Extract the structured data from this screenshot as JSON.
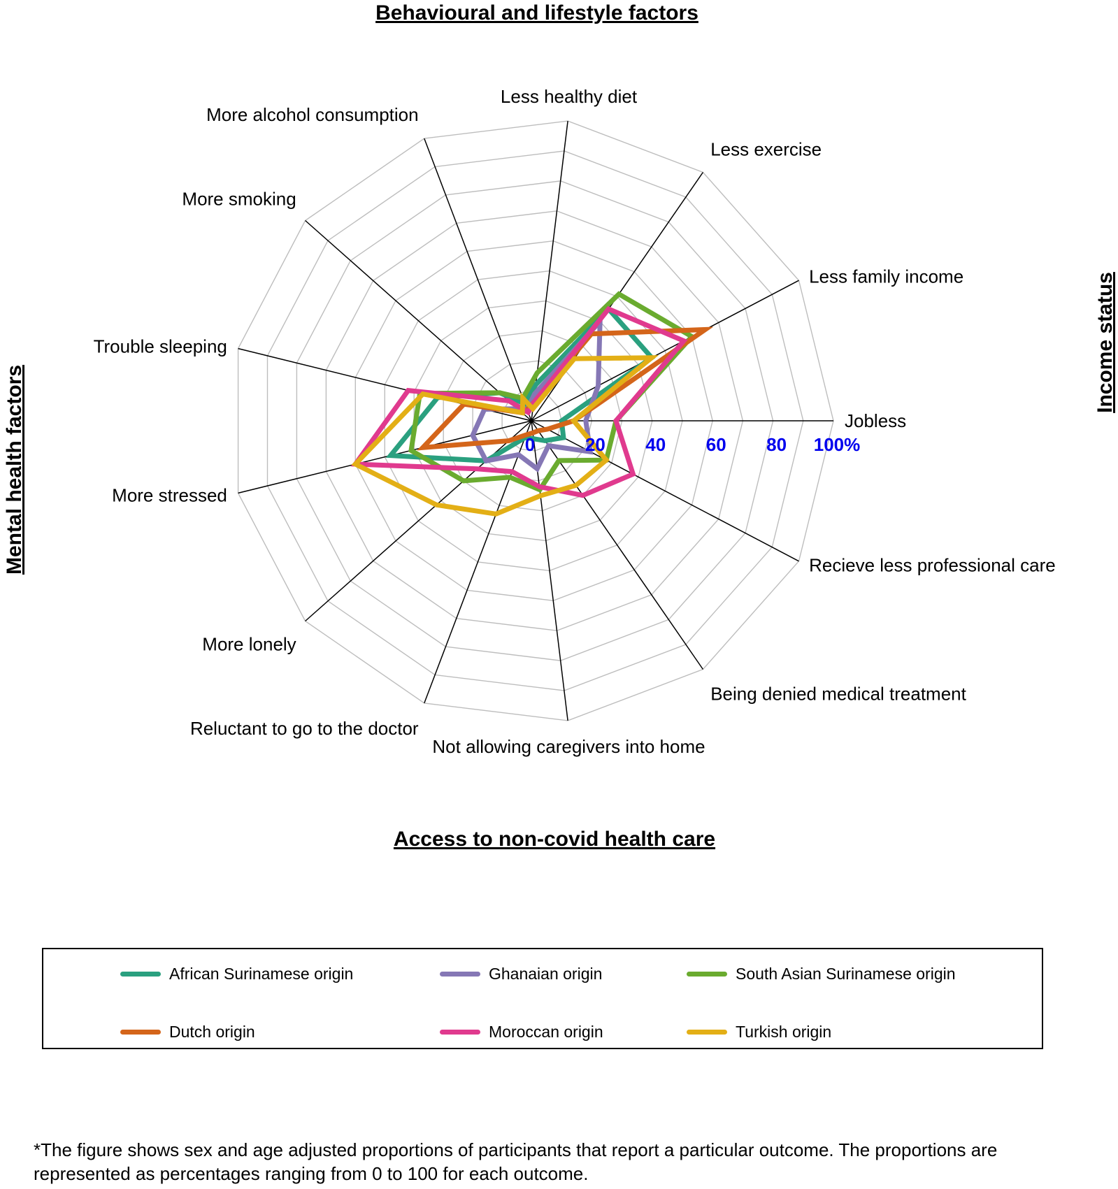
{
  "chart_data": {
    "type": "radar",
    "scale_max": 100,
    "ticks": [
      "0",
      "20",
      "40",
      "60",
      "80",
      "100%"
    ],
    "grid": true,
    "legend_placement": "bottom",
    "axes": [
      "Jobless",
      "Recieve less professional care",
      "Being denied medical treatment",
      "Not allowing caregivers into home",
      "Reluctant to go to the doctor",
      "More lonely",
      "More stressed",
      "Trouble sleeping",
      "More smoking",
      "More alcohol consumption",
      "Less healthy diet",
      "Less exercise",
      "Less family income"
    ],
    "series": [
      {
        "name": "African Surinamese origin",
        "color": "#2AA07F",
        "values": [
          10,
          12,
          8,
          6,
          6,
          20,
          48,
          32,
          14,
          6,
          12,
          45,
          45
        ]
      },
      {
        "name": "Ghanaian origin",
        "color": "#8577B5",
        "values": [
          18,
          22,
          10,
          16,
          12,
          20,
          20,
          16,
          6,
          4,
          9,
          40,
          25
        ]
      },
      {
        "name": "South Asian Surinamese origin",
        "color": "#6AAB2F",
        "values": [
          28,
          28,
          16,
          23,
          20,
          30,
          41,
          38,
          14,
          8,
          16,
          51,
          60
        ]
      },
      {
        "name": "Dutch origin",
        "color": "#D4651A",
        "values": [
          14,
          6,
          4,
          4,
          5,
          10,
          37,
          23,
          4,
          4,
          6,
          35,
          65
        ]
      },
      {
        "name": "Moroccan origin",
        "color": "#E03A8E",
        "values": [
          28,
          38,
          30,
          22,
          18,
          24,
          60,
          42,
          10,
          3,
          6,
          45,
          57
        ]
      },
      {
        "name": "Turkish origin",
        "color": "#E3AF16",
        "values": [
          14,
          28,
          26,
          25,
          33,
          42,
          60,
          37,
          4,
          8,
          4,
          25,
          45
        ]
      }
    ],
    "section_titles": {
      "top": "Behavioural and lifestyle factors",
      "right": "Income status",
      "bottom": "Access to non-covid health care",
      "left": "Mental health factors"
    }
  },
  "footnote": "*The figure shows sex and age adjusted proportions of participants that report a particular outcome. The proportions are represented as percentages ranging from 0 to 100 for each outcome."
}
